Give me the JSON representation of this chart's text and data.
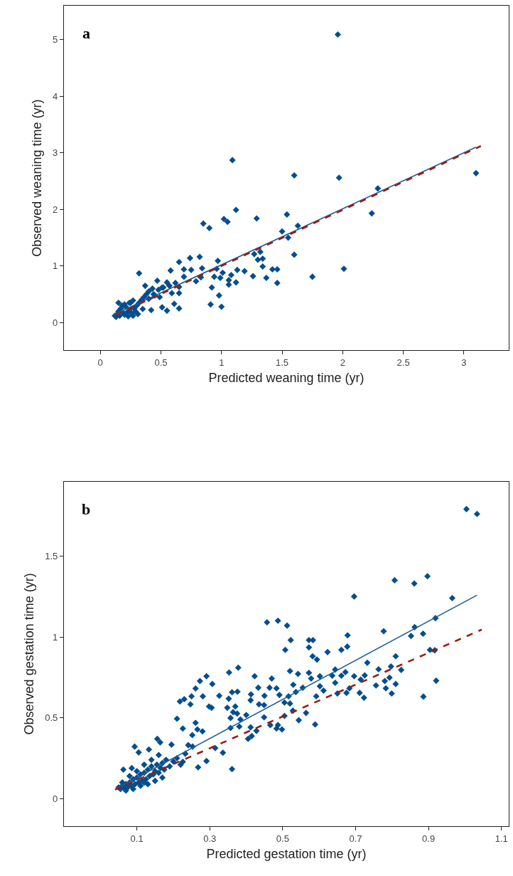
{
  "chart_data": [
    {
      "type": "scatter",
      "xlabel": "Predicted weaning time (yr)",
      "ylabel": "Observed weaning time (yr)",
      "annotations": [
        "a"
      ],
      "xlim": [
        -0.3,
        3.37
      ],
      "ylim": [
        -0.49,
        5.6
      ],
      "xticks": [
        0,
        0.5,
        1,
        1.5,
        2,
        2.5,
        3
      ],
      "yticks": [
        0,
        1,
        2,
        3,
        4,
        5
      ],
      "series": [
        {
          "type": "scatter",
          "marker": "diamond",
          "color": "#034e8e",
          "x": [
            1.96,
            1.09,
            1.6,
            1.97,
            3.1,
            2.29,
            2.24,
            1.12,
            0.85,
            0.9,
            1.02,
            1.05,
            1.29,
            1.54,
            1.63,
            1.5,
            1.55,
            1.6,
            2.01,
            1.75,
            1.46,
            1.46,
            1.42,
            1.37,
            1.34,
            1.3,
            1.34,
            1.27,
            1.32,
            1.26,
            1.19,
            1.13,
            1.12,
            1.06,
            1.08,
            1.06,
            1.0,
            0.91,
            0.98,
            0.92,
            0.99,
            0.94,
            0.97,
            0.96,
            1.01,
            0.84,
            0.82,
            0.74,
            0.75,
            0.69,
            0.79,
            0.83,
            0.65,
            0.58,
            0.69,
            0.65,
            0.65,
            0.55,
            0.61,
            0.65,
            0.59,
            0.55,
            0.47,
            0.51,
            0.49,
            0.51,
            0.44,
            0.4,
            0.37,
            0.32,
            0.27,
            0.24,
            0.42,
            0.35,
            0.12,
            0.14,
            0.15,
            0.17,
            0.18,
            0.2,
            0.22,
            0.24,
            0.26,
            0.28,
            0.3,
            0.32,
            0.34,
            0.36,
            0.13,
            0.16,
            0.19,
            0.21,
            0.25,
            0.29,
            0.31,
            0.27,
            0.23,
            0.38,
            0.4,
            0.43,
            0.45,
            0.48,
            0.52,
            0.57,
            0.62,
            0.15,
            0.2
          ],
          "values": [
            5.09,
            2.87,
            2.6,
            2.56,
            2.64,
            2.37,
            1.93,
            1.99,
            1.75,
            1.67,
            1.83,
            1.78,
            1.84,
            1.91,
            1.71,
            1.61,
            1.5,
            1.2,
            0.95,
            0.81,
            0.7,
            0.94,
            0.94,
            0.79,
            0.99,
            1.11,
            1.13,
            1.21,
            1.25,
            0.82,
            0.91,
            0.93,
            0.71,
            0.67,
            0.84,
            0.75,
            0.28,
            0.32,
            0.48,
            0.62,
            0.79,
            0.81,
            1.09,
            0.95,
            0.88,
            0.96,
            1.16,
            1.14,
            0.93,
            0.94,
            0.73,
            0.8,
            1.07,
            0.92,
            0.81,
            0.63,
            0.25,
            0.21,
            0.33,
            0.52,
            0.52,
            0.71,
            0.74,
            0.62,
            0.45,
            0.27,
            0.5,
            0.42,
            0.65,
            0.87,
            0.39,
            0.35,
            0.22,
            0.24,
            0.12,
            0.15,
            0.2,
            0.25,
            0.3,
            0.14,
            0.18,
            0.22,
            0.16,
            0.25,
            0.3,
            0.35,
            0.4,
            0.45,
            0.1,
            0.12,
            0.17,
            0.28,
            0.35,
            0.2,
            0.15,
            0.12,
            0.11,
            0.5,
            0.55,
            0.6,
            0.48,
            0.58,
            0.62,
            0.65,
            0.7,
            0.35,
            0.32
          ]
        },
        {
          "type": "line",
          "marker": "none",
          "line_style": "solid",
          "color": "#1d5c9c",
          "x": [
            0.11,
            3.1
          ],
          "values": [
            0.14,
            3.1
          ]
        },
        {
          "type": "line",
          "marker": "none",
          "line_style": "dashed",
          "color": "#9b1c0f",
          "x": [
            0.13,
            3.14
          ],
          "values": [
            0.14,
            3.12
          ]
        }
      ]
    },
    {
      "type": "scatter",
      "xlabel": "Predicted gestation time (yr)",
      "ylabel": "Observed gestation time (yr)",
      "annotations": [
        "b"
      ],
      "xlim": [
        -0.1,
        1.12
      ],
      "ylim": [
        -0.17,
        1.96
      ],
      "xticks": [
        0.1,
        0.3,
        0.5,
        0.7,
        0.9,
        1.1
      ],
      "yticks": [
        0,
        0.5,
        1,
        1.5
      ],
      "series": [
        {
          "type": "scatter",
          "marker": "diamond",
          "color": "#034e8e",
          "x": [
            1.004,
            1.033,
            0.897,
            0.861,
            0.807,
            0.965,
            0.696,
            0.457,
            0.487,
            0.512,
            0.522,
            0.507,
            0.572,
            0.583,
            0.572,
            0.582,
            0.594,
            0.623,
            0.661,
            0.677,
            0.678,
            0.777,
            0.862,
            0.852,
            0.885,
            0.919,
            0.904,
            0.917,
            0.81,
            0.732,
            0.763,
            0.797,
            0.825,
            0.793,
            0.78,
            0.81,
            0.756,
            0.783,
            0.799,
            0.921,
            0.886,
            0.725,
            0.714,
            0.696,
            0.711,
            0.723,
            0.675,
            0.672,
            0.661,
            0.644,
            0.636,
            0.644,
            0.683,
            0.65,
            0.612,
            0.602,
            0.592,
            0.602,
            0.578,
            0.572,
            0.542,
            0.52,
            0.529,
            0.555,
            0.536,
            0.516,
            0.505,
            0.52,
            0.491,
            0.483,
            0.47,
            0.464,
            0.45,
            0.435,
            0.449,
            0.433,
            0.413,
            0.412,
            0.423,
            0.378,
            0.353,
            0.291,
            0.307,
            0.273,
            0.261,
            0.25,
            0.218,
            0.23,
            0.247,
            0.281,
            0.298,
            0.305,
            0.326,
            0.361,
            0.376,
            0.352,
            0.348,
            0.37,
            0.364,
            0.375,
            0.357,
            0.384,
            0.4,
            0.357,
            0.381,
            0.412,
            0.428,
            0.449,
            0.466,
            0.483,
            0.498,
            0.487,
            0.505,
            0.528,
            0.544,
            0.564,
            0.589,
            0.405,
            0.415,
            0.361,
            0.336,
            0.315,
            0.291,
            0.268,
            0.28,
            0.261,
            0.266,
            0.252,
            0.226,
            0.21,
            0.241,
            0.253,
            0.233,
            0.226,
            0.195,
            0.156,
            0.164,
            0.133,
            0.094,
            0.105,
            0.063,
            0.086,
            0.05,
            0.055,
            0.06,
            0.065,
            0.07,
            0.075,
            0.08,
            0.085,
            0.09,
            0.095,
            0.1,
            0.105,
            0.11,
            0.115,
            0.12,
            0.125,
            0.13,
            0.135,
            0.14,
            0.145,
            0.15,
            0.155,
            0.16,
            0.165,
            0.17,
            0.175,
            0.18,
            0.19,
            0.2,
            0.21,
            0.22,
            0.07,
            0.09,
            0.11,
            0.13,
            0.15,
            0.17,
            0.12,
            0.06,
            0.08,
            0.1,
            0.12,
            0.14,
            0.16
          ],
          "values": [
            1.79,
            1.76,
            1.375,
            1.33,
            1.35,
            1.24,
            1.25,
            1.09,
            1.1,
            1.07,
            0.98,
            0.92,
            0.98,
            0.98,
            0.935,
            0.88,
            0.86,
            0.906,
            0.92,
            0.94,
            1.01,
            1.035,
            1.06,
            1.006,
            1.02,
            1.116,
            0.92,
            0.917,
            0.88,
            0.84,
            0.8,
            0.817,
            0.796,
            0.748,
            0.727,
            0.709,
            0.7,
            0.682,
            0.65,
            0.729,
            0.631,
            0.762,
            0.736,
            0.757,
            0.654,
            0.624,
            0.654,
            0.782,
            0.76,
            0.798,
            0.76,
            0.716,
            0.682,
            0.65,
            0.668,
            0.695,
            0.633,
            0.757,
            0.743,
            0.778,
            0.771,
            0.789,
            0.704,
            0.686,
            0.659,
            0.633,
            0.594,
            0.588,
            0.641,
            0.682,
            0.743,
            0.686,
            0.636,
            0.583,
            0.579,
            0.686,
            0.645,
            0.608,
            0.757,
            0.81,
            0.78,
            0.757,
            0.709,
            0.727,
            0.681,
            0.633,
            0.601,
            0.615,
            0.583,
            0.633,
            0.57,
            0.562,
            0.636,
            0.658,
            0.661,
            0.618,
            0.562,
            0.57,
            0.535,
            0.526,
            0.499,
            0.49,
            0.517,
            0.437,
            0.446,
            0.441,
            0.419,
            0.503,
            0.455,
            0.434,
            0.428,
            0.455,
            0.512,
            0.544,
            0.485,
            0.53,
            0.459,
            0.37,
            0.387,
            0.183,
            0.284,
            0.313,
            0.233,
            0.194,
            0.416,
            0.469,
            0.428,
            0.393,
            0.434,
            0.494,
            0.331,
            0.322,
            0.278,
            0.228,
            0.334,
            0.37,
            0.348,
            0.304,
            0.322,
            0.286,
            0.18,
            0.189,
            0.07,
            0.06,
            0.08,
            0.065,
            0.09,
            0.07,
            0.1,
            0.08,
            0.12,
            0.09,
            0.13,
            0.1,
            0.15,
            0.11,
            0.16,
            0.12,
            0.18,
            0.14,
            0.2,
            0.15,
            0.17,
            0.21,
            0.16,
            0.19,
            0.22,
            0.18,
            0.24,
            0.2,
            0.23,
            0.25,
            0.21,
            0.05,
            0.06,
            0.08,
            0.09,
            0.11,
            0.13,
            0.1,
            0.1,
            0.14,
            0.17,
            0.21,
            0.24,
            0.27
          ]
        },
        {
          "type": "line",
          "marker": "none",
          "line_style": "solid",
          "color": "#1d5c9c",
          "x": [
            0.043,
            1.033
          ],
          "values": [
            0.061,
            1.258
          ]
        },
        {
          "type": "line",
          "marker": "none",
          "line_style": "dashed",
          "color": "#9b1c0f",
          "x": [
            0.04,
            1.046
          ],
          "values": [
            0.056,
            1.045
          ]
        }
      ]
    }
  ]
}
